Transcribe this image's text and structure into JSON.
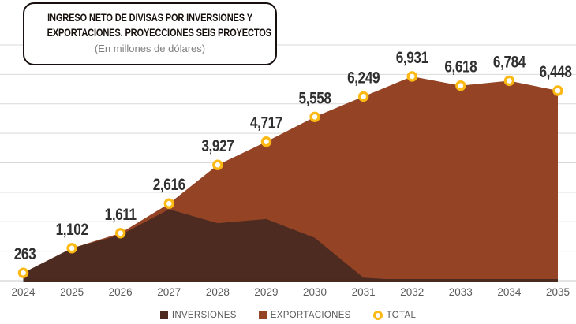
{
  "title_box": {
    "line1": "INGRESO NETO DE DIVISAS POR INVERSIONES Y",
    "line2": "EXPORTACIONES. PROYECCIONES SEIS PROYECTOS",
    "subtitle": "(En millones de dólares)"
  },
  "legend": {
    "inversiones": "INVERSIONES",
    "exportaciones": "EXPORTACIONES",
    "total": "TOTAL"
  },
  "colors": {
    "inversiones": "#4e2b20",
    "exportaciones": "#944425",
    "total_marker": "#fcb813",
    "gridline": "#d9d9d9",
    "axis_line": "#c8c8c8",
    "baseline_dark": "#4a2a1e",
    "value_label": "#303030",
    "axis_text": "#595959"
  },
  "chart_data": {
    "type": "area",
    "stacked": true,
    "title": "INGRESO NETO DE DIVISAS POR INVERSIONES Y EXPORTACIONES. PROYECCIONES SEIS PROYECTOS",
    "subtitle": "(En millones de dólares)",
    "categories": [
      "2024",
      "2025",
      "2026",
      "2027",
      "2028",
      "2029",
      "2030",
      "2031",
      "2032",
      "2033",
      "2034",
      "2035"
    ],
    "series": [
      {
        "name": "INVERSIONES",
        "color": "#4e2b20",
        "values": [
          263,
          1102,
          1550,
          2420,
          1950,
          2090,
          1450,
          100,
          0,
          0,
          0,
          0
        ]
      },
      {
        "name": "EXPORTACIONES",
        "color": "#944425",
        "values": [
          0,
          0,
          61,
          196,
          1977,
          2627,
          4108,
          6149,
          6931,
          6618,
          6784,
          6448
        ]
      }
    ],
    "total_line": {
      "name": "TOTAL",
      "marker": "circle",
      "marker_color": "#fcb813",
      "values": [
        263,
        1102,
        1611,
        2616,
        3927,
        4717,
        5558,
        6249,
        6931,
        6618,
        6784,
        6448
      ],
      "labels": [
        "263",
        "1,102",
        "1,611",
        "2,616",
        "3,927",
        "4,717",
        "5,558",
        "6,249",
        "6,931",
        "6,618",
        "6,784",
        "6,448"
      ]
    },
    "ylim": [
      0,
      8000
    ],
    "gridline_step": 1000,
    "grid": true,
    "y_axis_labels_visible": false,
    "legend_position": "bottom"
  }
}
